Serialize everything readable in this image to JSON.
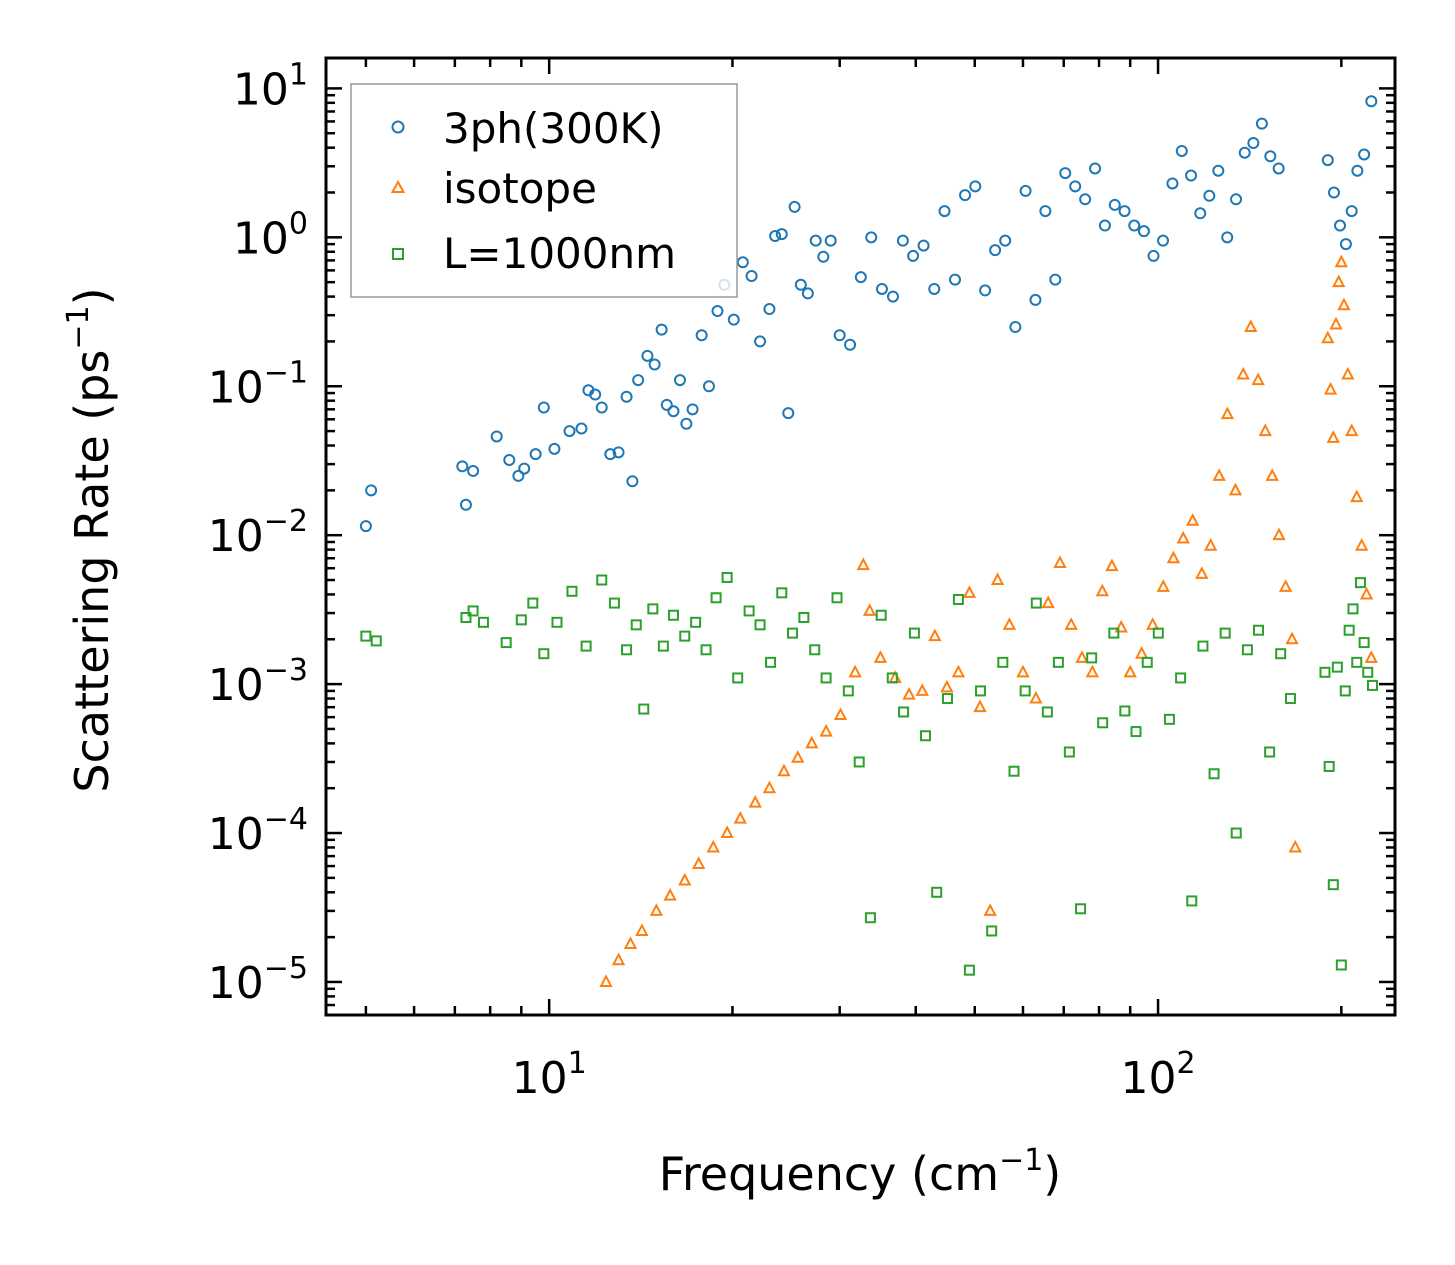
{
  "chart_data": {
    "type": "scatter",
    "xscale": "log",
    "yscale": "log",
    "xlim": [
      4.3,
      245
    ],
    "ylim": [
      6e-06,
      16
    ],
    "xlabel": {
      "base": "Frequency (cm",
      "sup": "−1",
      "end": ")"
    },
    "ylabel": {
      "base": "Scattering Rate (ps",
      "sup": "−1",
      "end": ")"
    },
    "x_ticks": [
      {
        "base": "10",
        "exp": "1",
        "value": 10
      },
      {
        "base": "10",
        "exp": "2",
        "value": 100
      }
    ],
    "y_ticks": [
      {
        "base": "10",
        "exp": "1",
        "value": 10
      },
      {
        "base": "10",
        "exp": "0",
        "value": 1
      },
      {
        "base": "10",
        "exp": "−1",
        "value": 0.1
      },
      {
        "base": "10",
        "exp": "−2",
        "value": 0.01
      },
      {
        "base": "10",
        "exp": "−3",
        "value": 0.001
      },
      {
        "base": "10",
        "exp": "−4",
        "value": 0.0001
      },
      {
        "base": "10",
        "exp": "−5",
        "value": 1e-05
      }
    ],
    "legend": {
      "position": "upper-left",
      "entries": [
        {
          "label": "3ph(300K)",
          "color": "#1f77b4",
          "marker": "circle"
        },
        {
          "label": "isotope",
          "color": "#ff7f0e",
          "marker": "triangle"
        },
        {
          "label": "L=1000nm",
          "color": "#2ca02c",
          "marker": "square"
        }
      ]
    },
    "series": [
      {
        "name": "3ph(300K)",
        "color": "#1f77b4",
        "marker": "circle",
        "points": [
          [
            5.0,
            0.0115
          ],
          [
            5.1,
            0.02
          ],
          [
            7.2,
            0.029
          ],
          [
            7.3,
            0.016
          ],
          [
            7.5,
            0.027
          ],
          [
            8.2,
            0.046
          ],
          [
            8.6,
            0.032
          ],
          [
            8.9,
            0.025
          ],
          [
            9.1,
            0.028
          ],
          [
            9.5,
            0.035
          ],
          [
            9.8,
            0.072
          ],
          [
            10.2,
            0.038
          ],
          [
            10.8,
            0.05
          ],
          [
            11.3,
            0.052
          ],
          [
            11.6,
            0.094
          ],
          [
            11.9,
            0.088
          ],
          [
            12.2,
            0.072
          ],
          [
            12.6,
            0.035
          ],
          [
            13.0,
            0.036
          ],
          [
            13.4,
            0.085
          ],
          [
            13.7,
            0.023
          ],
          [
            14.0,
            0.11
          ],
          [
            14.5,
            0.16
          ],
          [
            14.9,
            0.14
          ],
          [
            15.3,
            0.24
          ],
          [
            15.6,
            0.075
          ],
          [
            16.0,
            0.068
          ],
          [
            16.4,
            0.11
          ],
          [
            16.8,
            0.056
          ],
          [
            17.2,
            0.07
          ],
          [
            17.8,
            0.22
          ],
          [
            18.3,
            0.1
          ],
          [
            18.9,
            0.32
          ],
          [
            19.4,
            0.48
          ],
          [
            20.1,
            0.28
          ],
          [
            20.8,
            0.68
          ],
          [
            21.5,
            0.55
          ],
          [
            22.2,
            0.2
          ],
          [
            23.0,
            0.33
          ],
          [
            23.5,
            1.02
          ],
          [
            24.1,
            1.05
          ],
          [
            24.7,
            0.066
          ],
          [
            25.3,
            1.6
          ],
          [
            25.9,
            0.48
          ],
          [
            26.6,
            0.42
          ],
          [
            27.4,
            0.95
          ],
          [
            28.2,
            0.74
          ],
          [
            29.0,
            0.95
          ],
          [
            30.0,
            0.22
          ],
          [
            31.2,
            0.19
          ],
          [
            32.5,
            0.54
          ],
          [
            33.8,
            1.0
          ],
          [
            35.2,
            0.45
          ],
          [
            36.7,
            0.4
          ],
          [
            38.1,
            0.95
          ],
          [
            39.6,
            0.75
          ],
          [
            41.2,
            0.88
          ],
          [
            42.9,
            0.45
          ],
          [
            44.6,
            1.5
          ],
          [
            46.4,
            0.52
          ],
          [
            48.2,
            1.92
          ],
          [
            50.1,
            2.2
          ],
          [
            52.0,
            0.44
          ],
          [
            54.0,
            0.82
          ],
          [
            56.1,
            0.95
          ],
          [
            58.3,
            0.25
          ],
          [
            60.6,
            2.05
          ],
          [
            62.9,
            0.38
          ],
          [
            65.3,
            1.5
          ],
          [
            67.8,
            0.52
          ],
          [
            70.4,
            2.7
          ],
          [
            73.1,
            2.2
          ],
          [
            75.9,
            1.8
          ],
          [
            78.8,
            2.9
          ],
          [
            81.8,
            1.2
          ],
          [
            84.9,
            1.65
          ],
          [
            88.1,
            1.5
          ],
          [
            91.4,
            1.2
          ],
          [
            94.8,
            1.1
          ],
          [
            98.3,
            0.75
          ],
          [
            101.9,
            0.95
          ],
          [
            105.6,
            2.3
          ],
          [
            109.4,
            3.8
          ],
          [
            113.3,
            2.6
          ],
          [
            117.3,
            1.45
          ],
          [
            121.4,
            1.9
          ],
          [
            125.6,
            2.8
          ],
          [
            129.9,
            1.0
          ],
          [
            134.3,
            1.8
          ],
          [
            138.8,
            3.7
          ],
          [
            143.4,
            4.3
          ],
          [
            148.1,
            5.8
          ],
          [
            152.9,
            3.5
          ],
          [
            157.8,
            2.9
          ],
          [
            190.0,
            3.3
          ],
          [
            194.5,
            2.0
          ],
          [
            199.0,
            1.2
          ],
          [
            203.5,
            0.9
          ],
          [
            208.0,
            1.5
          ],
          [
            212.5,
            2.8
          ],
          [
            218.0,
            3.6
          ],
          [
            224.0,
            8.2
          ]
        ]
      },
      {
        "name": "isotope",
        "color": "#ff7f0e",
        "marker": "triangle",
        "points": [
          [
            12.4,
            1e-05
          ],
          [
            13.0,
            1.4e-05
          ],
          [
            13.6,
            1.8e-05
          ],
          [
            14.2,
            2.2e-05
          ],
          [
            15.0,
            3e-05
          ],
          [
            15.8,
            3.8e-05
          ],
          [
            16.7,
            4.8e-05
          ],
          [
            17.6,
            6.2e-05
          ],
          [
            18.6,
            8e-05
          ],
          [
            19.6,
            0.0001
          ],
          [
            20.6,
            0.000125
          ],
          [
            21.8,
            0.00016
          ],
          [
            23.0,
            0.0002
          ],
          [
            24.3,
            0.00026
          ],
          [
            25.6,
            0.00032
          ],
          [
            27.0,
            0.0004
          ],
          [
            28.5,
            0.00048
          ],
          [
            30.1,
            0.00062
          ],
          [
            31.8,
            0.0012
          ],
          [
            32.8,
            0.0063
          ],
          [
            33.6,
            0.0031
          ],
          [
            35.0,
            0.0015
          ],
          [
            37.0,
            0.0011
          ],
          [
            39.0,
            0.00085
          ],
          [
            41.0,
            0.0009
          ],
          [
            43.0,
            0.0021
          ],
          [
            45.0,
            0.00095
          ],
          [
            47.0,
            0.0012
          ],
          [
            49.0,
            0.0041
          ],
          [
            51.0,
            0.0007
          ],
          [
            53.0,
            3e-05
          ],
          [
            54.5,
            0.005
          ],
          [
            57.0,
            0.0025
          ],
          [
            60.0,
            0.0012
          ],
          [
            63.0,
            0.0008
          ],
          [
            66.0,
            0.0035
          ],
          [
            69.0,
            0.0065
          ],
          [
            72.0,
            0.0025
          ],
          [
            75.0,
            0.0015
          ],
          [
            78.0,
            0.0012
          ],
          [
            81.0,
            0.0042
          ],
          [
            84.0,
            0.0062
          ],
          [
            87.0,
            0.0024
          ],
          [
            90.0,
            0.0012
          ],
          [
            94.0,
            0.0016
          ],
          [
            98.0,
            0.0025
          ],
          [
            102.0,
            0.0045
          ],
          [
            106.0,
            0.007
          ],
          [
            110.0,
            0.0095
          ],
          [
            114.0,
            0.0125
          ],
          [
            118.0,
            0.0055
          ],
          [
            122.0,
            0.0085
          ],
          [
            126.0,
            0.025
          ],
          [
            130.0,
            0.065
          ],
          [
            134.0,
            0.02
          ],
          [
            138.0,
            0.12
          ],
          [
            142.0,
            0.25
          ],
          [
            146.0,
            0.11
          ],
          [
            150.0,
            0.05
          ],
          [
            154.0,
            0.025
          ],
          [
            158.0,
            0.01
          ],
          [
            162.0,
            0.0045
          ],
          [
            166.0,
            0.002
          ],
          [
            168.0,
            8e-05
          ],
          [
            190.0,
            0.21
          ],
          [
            192.0,
            0.095
          ],
          [
            194.0,
            0.045
          ],
          [
            196.0,
            0.26
          ],
          [
            198.0,
            0.5
          ],
          [
            200.0,
            0.68
          ],
          [
            202.0,
            0.35
          ],
          [
            205.0,
            0.12
          ],
          [
            208.0,
            0.05
          ],
          [
            212.0,
            0.018
          ],
          [
            216.0,
            0.0085
          ],
          [
            220.0,
            0.004
          ],
          [
            224.0,
            0.0015
          ]
        ]
      },
      {
        "name": "L=1000nm",
        "color": "#2ca02c",
        "marker": "square",
        "points": [
          [
            5.0,
            0.0021
          ],
          [
            5.2,
            0.00195
          ],
          [
            7.3,
            0.0028
          ],
          [
            7.5,
            0.0031
          ],
          [
            7.8,
            0.0026
          ],
          [
            8.5,
            0.0019
          ],
          [
            9.0,
            0.0027
          ],
          [
            9.4,
            0.0035
          ],
          [
            9.8,
            0.0016
          ],
          [
            10.3,
            0.0026
          ],
          [
            10.9,
            0.0042
          ],
          [
            11.5,
            0.0018
          ],
          [
            12.2,
            0.005
          ],
          [
            12.8,
            0.0035
          ],
          [
            13.4,
            0.0017
          ],
          [
            13.9,
            0.0025
          ],
          [
            14.3,
            0.00068
          ],
          [
            14.8,
            0.0032
          ],
          [
            15.4,
            0.0018
          ],
          [
            16.0,
            0.0029
          ],
          [
            16.7,
            0.0021
          ],
          [
            17.4,
            0.0026
          ],
          [
            18.1,
            0.0017
          ],
          [
            18.8,
            0.0038
          ],
          [
            19.6,
            0.0052
          ],
          [
            20.4,
            0.0011
          ],
          [
            21.3,
            0.0031
          ],
          [
            22.2,
            0.0025
          ],
          [
            23.1,
            0.0014
          ],
          [
            24.1,
            0.0041
          ],
          [
            25.1,
            0.0022
          ],
          [
            26.2,
            0.0028
          ],
          [
            27.3,
            0.0017
          ],
          [
            28.5,
            0.0011
          ],
          [
            29.7,
            0.0038
          ],
          [
            31.0,
            0.0009
          ],
          [
            32.3,
            0.0003
          ],
          [
            33.7,
            2.7e-05
          ],
          [
            35.1,
            0.0029
          ],
          [
            36.6,
            0.0011
          ],
          [
            38.2,
            0.00065
          ],
          [
            39.8,
            0.0022
          ],
          [
            41.5,
            0.00045
          ],
          [
            43.3,
            4e-05
          ],
          [
            45.1,
            0.0008
          ],
          [
            47.0,
            0.0037
          ],
          [
            49.0,
            1.2e-05
          ],
          [
            51.1,
            0.0009
          ],
          [
            53.3,
            2.2e-05
          ],
          [
            55.6,
            0.0014
          ],
          [
            58.0,
            0.00026
          ],
          [
            60.5,
            0.0009
          ],
          [
            63.1,
            0.0035
          ],
          [
            65.8,
            0.00065
          ],
          [
            68.6,
            0.0014
          ],
          [
            71.5,
            0.00035
          ],
          [
            74.6,
            3.1e-05
          ],
          [
            77.8,
            0.0015
          ],
          [
            81.1,
            0.00055
          ],
          [
            84.6,
            0.0022
          ],
          [
            88.2,
            0.00066
          ],
          [
            92.0,
            0.00048
          ],
          [
            96.0,
            0.0014
          ],
          [
            100.1,
            0.0022
          ],
          [
            104.4,
            0.00058
          ],
          [
            108.9,
            0.0011
          ],
          [
            113.6,
            3.5e-05
          ],
          [
            118.5,
            0.0018
          ],
          [
            123.6,
            0.00025
          ],
          [
            128.9,
            0.0022
          ],
          [
            134.4,
            0.0001
          ],
          [
            140.2,
            0.0017
          ],
          [
            146.2,
            0.0023
          ],
          [
            152.5,
            0.00035
          ],
          [
            159.0,
            0.0016
          ],
          [
            165.0,
            0.0008
          ],
          [
            188.0,
            0.0012
          ],
          [
            191.0,
            0.00028
          ],
          [
            194.0,
            4.5e-05
          ],
          [
            197.0,
            0.0013
          ],
          [
            200.0,
            1.3e-05
          ],
          [
            203.0,
            0.0009
          ],
          [
            206.0,
            0.0023
          ],
          [
            209.0,
            0.0032
          ],
          [
            212.0,
            0.0014
          ],
          [
            215.0,
            0.0048
          ],
          [
            218.0,
            0.0019
          ],
          [
            221.0,
            0.0012
          ],
          [
            225.0,
            0.00098
          ]
        ]
      }
    ]
  }
}
